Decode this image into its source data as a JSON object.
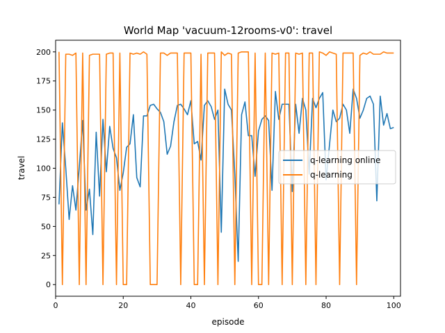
{
  "chart_data": {
    "type": "line",
    "title": "World Map 'vacuum-12rooms-v0': travel",
    "xlabel": "episode",
    "ylabel": "travel",
    "xlim": [
      0,
      102
    ],
    "ylim": [
      -10,
      210
    ],
    "xticks": [
      0,
      20,
      40,
      60,
      80,
      100
    ],
    "yticks": [
      0,
      25,
      50,
      75,
      100,
      125,
      150,
      175,
      200
    ],
    "grid": false,
    "legend_position": "center-right",
    "series": [
      {
        "name": "q-learning online",
        "color": "#1f77b4",
        "x": [
          1,
          2,
          3,
          4,
          5,
          6,
          7,
          8,
          9,
          10,
          11,
          12,
          13,
          14,
          15,
          16,
          17,
          18,
          19,
          20,
          21,
          22,
          23,
          24,
          25,
          26,
          27,
          28,
          29,
          30,
          31,
          32,
          33,
          34,
          35,
          36,
          37,
          38,
          39,
          40,
          41,
          42,
          43,
          44,
          45,
          46,
          47,
          48,
          49,
          50,
          51,
          52,
          53,
          54,
          55,
          56,
          57,
          58,
          59,
          60,
          61,
          62,
          63,
          64,
          65,
          66,
          67,
          68,
          69,
          70,
          71,
          72,
          73,
          74,
          75,
          76,
          77,
          78,
          79,
          80,
          81,
          82,
          83,
          84,
          85,
          86,
          87,
          88,
          89,
          90,
          91,
          92,
          93,
          94,
          95,
          96,
          97,
          98,
          99,
          100
        ],
        "values": [
          69,
          139,
          100,
          56,
          85,
          64,
          101,
          141,
          64,
          82,
          43,
          131,
          76,
          142,
          97,
          136,
          117,
          109,
          81,
          96,
          118,
          121,
          146,
          92,
          84,
          145,
          145,
          154,
          155,
          151,
          148,
          140,
          112,
          119,
          140,
          154,
          155,
          151,
          146,
          158,
          121,
          123,
          107,
          154,
          158,
          153,
          142,
          150,
          45,
          168,
          155,
          150,
          95,
          20,
          146,
          157,
          128,
          128,
          93,
          132,
          142,
          145,
          141,
          81,
          166,
          142,
          155,
          155,
          155,
          80,
          155,
          130,
          160,
          150,
          95,
          160,
          152,
          160,
          165,
          90,
          120,
          150,
          140,
          143,
          155,
          150,
          130,
          168,
          160,
          143,
          150,
          160,
          162,
          155,
          72,
          162,
          137,
          147,
          134,
          135
        ]
      },
      {
        "name": "q-learning",
        "color": "#ff7f0e",
        "x": [
          1,
          2,
          3,
          4,
          5,
          6,
          7,
          8,
          9,
          10,
          11,
          12,
          13,
          14,
          15,
          16,
          17,
          18,
          19,
          20,
          21,
          22,
          23,
          24,
          25,
          26,
          27,
          28,
          29,
          30,
          31,
          32,
          33,
          34,
          35,
          36,
          37,
          38,
          39,
          40,
          41,
          42,
          43,
          44,
          45,
          46,
          47,
          48,
          49,
          50,
          51,
          52,
          53,
          54,
          55,
          56,
          57,
          58,
          59,
          60,
          61,
          62,
          63,
          64,
          65,
          66,
          67,
          68,
          69,
          70,
          71,
          72,
          73,
          74,
          75,
          76,
          77,
          78,
          79,
          80,
          81,
          82,
          83,
          84,
          85,
          86,
          87,
          88,
          89,
          90,
          91,
          92,
          93,
          94,
          95,
          96,
          97,
          98,
          99,
          100
        ],
        "values": [
          200,
          0,
          198,
          198,
          197,
          199,
          0,
          199,
          0,
          197,
          198,
          198,
          198,
          0,
          198,
          199,
          199,
          0,
          199,
          0,
          0,
          199,
          198,
          199,
          198,
          200,
          198,
          0,
          0,
          0,
          199,
          199,
          197,
          199,
          199,
          199,
          0,
          199,
          199,
          199,
          0,
          0,
          198,
          0,
          199,
          199,
          199,
          0,
          200,
          197,
          199,
          198,
          0,
          199,
          200,
          200,
          200,
          0,
          199,
          0,
          0,
          199,
          0,
          199,
          198,
          199,
          0,
          199,
          199,
          0,
          199,
          198,
          199,
          0,
          199,
          199,
          0,
          200,
          199,
          197,
          200,
          199,
          198,
          0,
          199,
          199,
          199,
          199,
          0,
          197,
          199,
          198,
          200,
          198,
          198,
          198,
          200,
          199,
          199,
          199
        ]
      }
    ]
  }
}
